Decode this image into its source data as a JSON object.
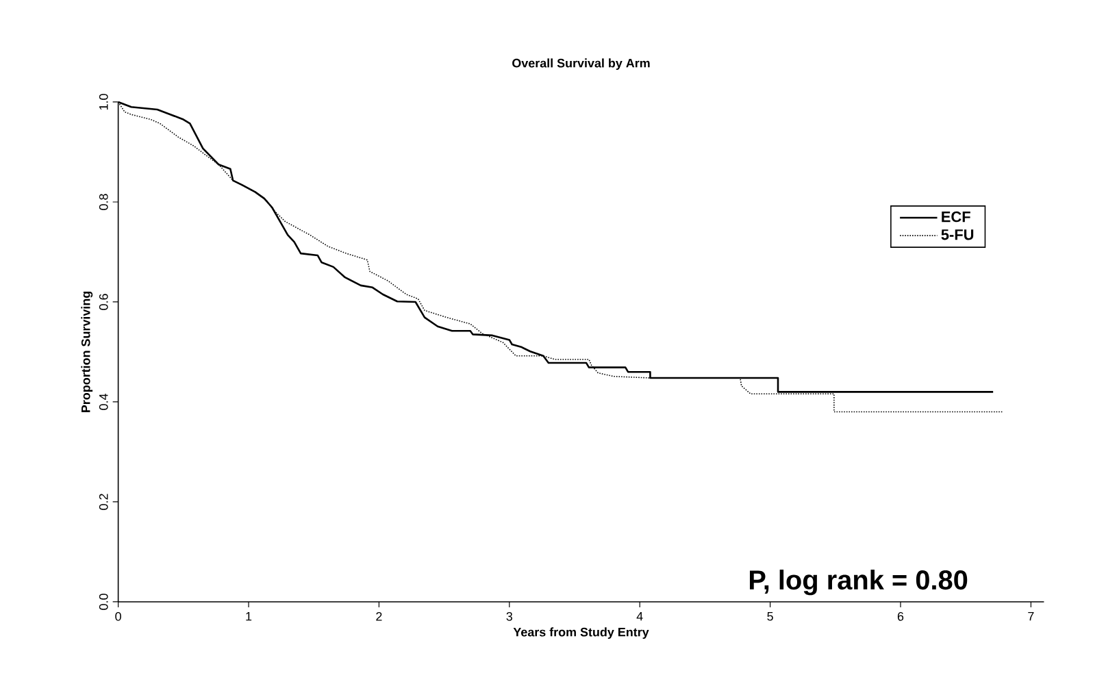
{
  "chart_data": {
    "type": "line",
    "title": "Overall Survival by Arm",
    "xlabel": "Years from Study Entry",
    "ylabel": "Proportion Surviving",
    "xlim": [
      0,
      7.1
    ],
    "ylim": [
      0,
      1.0
    ],
    "xticks": [
      0,
      1,
      2,
      3,
      4,
      5,
      6,
      7
    ],
    "yticks": [
      {
        "value": 0,
        "label": "0.0"
      },
      {
        "value": 0.2,
        "label": "0.2"
      },
      {
        "value": 0.4,
        "label": "0.4"
      },
      {
        "value": 0.6,
        "label": "0.6"
      },
      {
        "value": 0.8,
        "label": "0.8"
      },
      {
        "value": 1.0,
        "label": "1.0"
      }
    ],
    "legend": "top right",
    "grid": false,
    "marker": "none",
    "annotations": [
      "P, log rank = 0.80"
    ],
    "series": [
      {
        "name": "ECF",
        "color": "#000000",
        "line_style": "solid",
        "x": [
          0,
          0.1,
          0.3,
          0.4,
          0.5,
          0.55,
          0.65,
          0.77,
          0.86,
          0.88,
          0.95,
          1.05,
          1.12,
          1.18,
          1.25,
          1.3,
          1.35,
          1.4,
          1.53,
          1.56,
          1.65,
          1.74,
          1.86,
          1.95,
          2.03,
          2.14,
          2.28,
          2.35,
          2.45,
          2.56,
          2.7,
          2.72,
          2.87,
          3.0,
          3.02,
          3.09,
          3.16,
          3.26,
          3.3,
          3.59,
          3.61,
          3.89,
          3.91,
          4.08,
          4.08,
          5.06,
          5.06,
          6.71
        ],
        "values": [
          1.0,
          0.99,
          0.985,
          0.975,
          0.965,
          0.957,
          0.907,
          0.875,
          0.866,
          0.843,
          0.834,
          0.82,
          0.807,
          0.789,
          0.757,
          0.734,
          0.72,
          0.697,
          0.693,
          0.679,
          0.67,
          0.649,
          0.633,
          0.629,
          0.615,
          0.601,
          0.6,
          0.569,
          0.551,
          0.542,
          0.542,
          0.535,
          0.533,
          0.524,
          0.515,
          0.51,
          0.501,
          0.492,
          0.478,
          0.478,
          0.469,
          0.469,
          0.46,
          0.46,
          0.448,
          0.448,
          0.42,
          0.42
        ]
      },
      {
        "name": "5-FU",
        "color": "#000000",
        "line_style": "dotted",
        "x": [
          0,
          0.05,
          0.1,
          0.25,
          0.32,
          0.46,
          0.58,
          0.67,
          0.77,
          0.88,
          1.05,
          1.14,
          1.19,
          1.28,
          1.47,
          1.61,
          1.75,
          1.91,
          1.93,
          2.07,
          2.21,
          2.3,
          2.35,
          2.52,
          2.7,
          2.79,
          2.95,
          3.05,
          3.26,
          3.35,
          3.61,
          3.63,
          3.68,
          3.8,
          4.07,
          4.77,
          4.78,
          4.85,
          5.49,
          5.49,
          6.78
        ],
        "values": [
          1.0,
          0.98,
          0.975,
          0.965,
          0.957,
          0.93,
          0.912,
          0.894,
          0.875,
          0.843,
          0.82,
          0.802,
          0.784,
          0.761,
          0.734,
          0.711,
          0.697,
          0.684,
          0.661,
          0.642,
          0.615,
          0.606,
          0.583,
          0.569,
          0.556,
          0.537,
          0.519,
          0.492,
          0.492,
          0.485,
          0.485,
          0.473,
          0.458,
          0.451,
          0.448,
          0.448,
          0.432,
          0.416,
          0.416,
          0.38,
          0.38
        ]
      }
    ]
  }
}
